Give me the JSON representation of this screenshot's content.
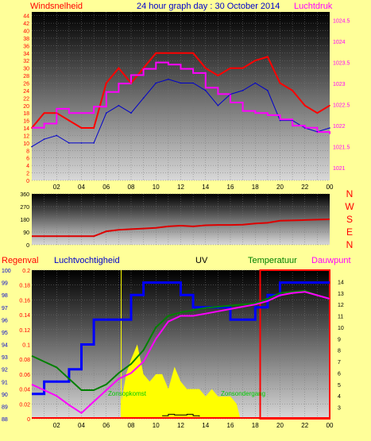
{
  "header": {
    "left_label": "Windsnelheid",
    "title": "24 hour graph day : 30 October 2014",
    "right_label": "Luchtdruk"
  },
  "middle": {
    "directions": [
      "N",
      "W",
      "S",
      "E",
      "N"
    ],
    "ticks": [
      "360",
      "270",
      "180",
      "90",
      "0"
    ]
  },
  "bottom_header": {
    "rain": "Regenval",
    "humidity": "Luchtvochtigheid",
    "uv": "UV",
    "temperature": "Temperatuur",
    "dewpoint": "Dauwpunt"
  },
  "annotations": {
    "sunrise": "Zonsopkomst",
    "sunset": "Zonsondergang"
  },
  "hour_ticks": [
    "02",
    "04",
    "06",
    "08",
    "10",
    "12",
    "14",
    "16",
    "18",
    "20",
    "22",
    "00"
  ],
  "colors": {
    "background": "#FFFF99",
    "wind_gust": "#FF0000",
    "wind_avg": "#0000CC",
    "pressure": "#FF00FF",
    "direction": "#DD0000",
    "humidity": "#0000FF",
    "temperature": "#008000",
    "dewpoint": "#FF00FF",
    "solar": "#FFFF00",
    "uv": "#000000"
  },
  "chart_data": [
    {
      "type": "line",
      "title": "24 hour graph day : 30 October 2014",
      "xlabel": "",
      "ylabel": "Windsnelheid",
      "xlim": [
        0,
        24
      ],
      "ylim": [
        0,
        45
      ],
      "y_ticks": [
        0,
        2,
        4,
        6,
        8,
        10,
        12,
        14,
        16,
        18,
        20,
        22,
        24,
        26,
        28,
        30,
        32,
        34,
        36,
        38,
        40,
        42,
        44
      ],
      "y2label": "Luchtdruk",
      "y2lim": [
        1020.7,
        1024.7
      ],
      "y2_ticks": [
        1021,
        1021.5,
        1022,
        1022.5,
        1023,
        1023.5,
        1024,
        1024.5
      ],
      "grid": true,
      "series": [
        {
          "name": "Windsnelheid",
          "axis": "left",
          "x": [
            0,
            1,
            2,
            3,
            4,
            5,
            6,
            7,
            8,
            9,
            10,
            11,
            12,
            13,
            14,
            15,
            16,
            17,
            18,
            19,
            20,
            21,
            22,
            23,
            24
          ],
          "values": [
            9,
            11,
            12,
            10,
            10,
            10,
            18,
            20,
            18,
            22,
            26,
            27,
            26,
            26,
            24,
            20,
            23,
            24,
            26,
            24,
            16,
            16,
            14,
            13,
            14
          ]
        },
        {
          "name": "Windvlaag",
          "axis": "left",
          "x": [
            0,
            1,
            2,
            3,
            4,
            5,
            6,
            7,
            8,
            9,
            10,
            11,
            12,
            13,
            14,
            15,
            16,
            17,
            18,
            19,
            20,
            21,
            22,
            23,
            24
          ],
          "values": [
            14,
            18,
            18,
            16,
            14,
            14,
            26,
            30,
            26,
            30,
            34,
            34,
            34,
            34,
            30,
            28,
            30,
            30,
            32,
            33,
            26,
            24,
            20,
            18,
            20
          ]
        },
        {
          "name": "Luchtdruk",
          "axis": "right",
          "x": [
            0,
            1,
            2,
            3,
            4,
            5,
            6,
            7,
            8,
            9,
            10,
            11,
            12,
            13,
            14,
            15,
            16,
            17,
            18,
            19,
            20,
            21,
            22,
            23,
            24
          ],
          "values": [
            1021.95,
            1022.05,
            1022.4,
            1022.3,
            1022.3,
            1022.45,
            1022.8,
            1023.0,
            1023.2,
            1023.35,
            1023.5,
            1023.45,
            1023.35,
            1023.25,
            1022.9,
            1022.75,
            1022.55,
            1022.35,
            1022.3,
            1022.25,
            1022.15,
            1022.0,
            1021.95,
            1021.85,
            1021.8
          ]
        }
      ]
    },
    {
      "type": "line",
      "title": "",
      "xlabel": "",
      "ylabel": "",
      "xlim": [
        0,
        24
      ],
      "ylim": [
        0,
        360
      ],
      "grid": true,
      "series": [
        {
          "name": "Windrichting",
          "x": [
            0,
            1,
            2,
            3,
            4,
            5,
            6,
            7,
            8,
            9,
            10,
            11,
            12,
            13,
            14,
            15,
            16,
            17,
            18,
            19,
            20,
            21,
            22,
            23,
            24
          ],
          "values": [
            60,
            60,
            60,
            60,
            60,
            60,
            95,
            105,
            110,
            115,
            120,
            130,
            135,
            130,
            138,
            140,
            140,
            142,
            150,
            155,
            170,
            172,
            175,
            178,
            180
          ]
        }
      ]
    },
    {
      "type": "line",
      "title": "",
      "xlabel": "",
      "ylabel": "Regenval",
      "xlim": [
        0,
        24
      ],
      "ylim": [
        0,
        0.2
      ],
      "y_ticks": [
        0,
        0.02,
        0.04,
        0.06,
        0.08,
        0.1,
        0.12,
        0.14,
        0.16,
        0.18,
        0.2
      ],
      "y_hum_lim": [
        88,
        100
      ],
      "y_hum_ticks": [
        88,
        89,
        90,
        91,
        92,
        93,
        94,
        95,
        96,
        97,
        98,
        99,
        100
      ],
      "y2lim": [
        2,
        15
      ],
      "y2_ticks": [
        3,
        4,
        5,
        6,
        7,
        8,
        9,
        10,
        11,
        12,
        13,
        14
      ],
      "grid": true,
      "series": [
        {
          "name": "Luchtvochtigheid",
          "axis": "humidity",
          "x": [
            0,
            1,
            2,
            3,
            4,
            5,
            6,
            7,
            8,
            9,
            10,
            11,
            12,
            13,
            14,
            15,
            16,
            17,
            18,
            19,
            20,
            21,
            22,
            23,
            24
          ],
          "values": [
            90,
            91,
            91,
            92,
            94,
            96,
            96,
            96,
            98,
            99,
            99,
            99,
            98,
            97,
            97,
            97,
            96,
            96,
            97,
            98,
            99,
            99,
            99,
            99,
            99
          ]
        },
        {
          "name": "Temperatuur",
          "axis": "right",
          "x": [
            0,
            1,
            2,
            3,
            4,
            5,
            6,
            7,
            8,
            9,
            10,
            11,
            12,
            13,
            14,
            15,
            16,
            17,
            18,
            19,
            20,
            21,
            22,
            23,
            24
          ],
          "values": [
            7.5,
            7,
            6.5,
            5.5,
            4.5,
            4.5,
            5,
            6,
            6.8,
            8,
            10,
            11,
            11.3,
            11.5,
            11.7,
            11.8,
            11.9,
            12,
            12.1,
            12.5,
            13,
            13.1,
            13.2,
            12.8,
            12.5
          ]
        },
        {
          "name": "Dauwpunt",
          "axis": "right",
          "x": [
            0,
            1,
            2,
            3,
            4,
            5,
            6,
            7,
            8,
            9,
            10,
            11,
            12,
            13,
            14,
            15,
            16,
            17,
            18,
            19,
            20,
            21,
            22,
            23,
            24
          ],
          "values": [
            5,
            4.5,
            4,
            3.2,
            2.5,
            3.5,
            4.5,
            5.5,
            6,
            7,
            9,
            10.5,
            11,
            11,
            11.2,
            11.4,
            11.6,
            11.8,
            12,
            12.3,
            12.8,
            13,
            13.1,
            12.8,
            12.5
          ]
        },
        {
          "name": "Zonnestraling",
          "axis": "solar",
          "x": [
            7.2,
            7.6,
            8,
            8.5,
            9,
            9.5,
            10,
            10.5,
            11,
            11.5,
            12,
            12.5,
            13,
            13.5,
            14,
            14.5,
            15,
            15.5,
            16,
            16.5,
            16.8
          ],
          "values": [
            0.02,
            0.06,
            0.08,
            0.1,
            0.06,
            0.05,
            0.06,
            0.06,
            0.04,
            0.07,
            0.05,
            0.04,
            0.04,
            0.04,
            0.03,
            0.04,
            0.03,
            0.03,
            0.03,
            0.02,
            0
          ]
        },
        {
          "name": "UV",
          "axis": "uv",
          "x": [
            10.5,
            11,
            11.5,
            12,
            12.5,
            13,
            13.5
          ],
          "values": [
            0.004,
            0.006,
            0.005,
            0.005,
            0.006,
            0.004,
            0.003
          ]
        },
        {
          "name": "Regenval",
          "axis": "left",
          "x": [
            18.4,
            24
          ],
          "values": [
            0.2,
            0.2
          ]
        }
      ]
    }
  ]
}
